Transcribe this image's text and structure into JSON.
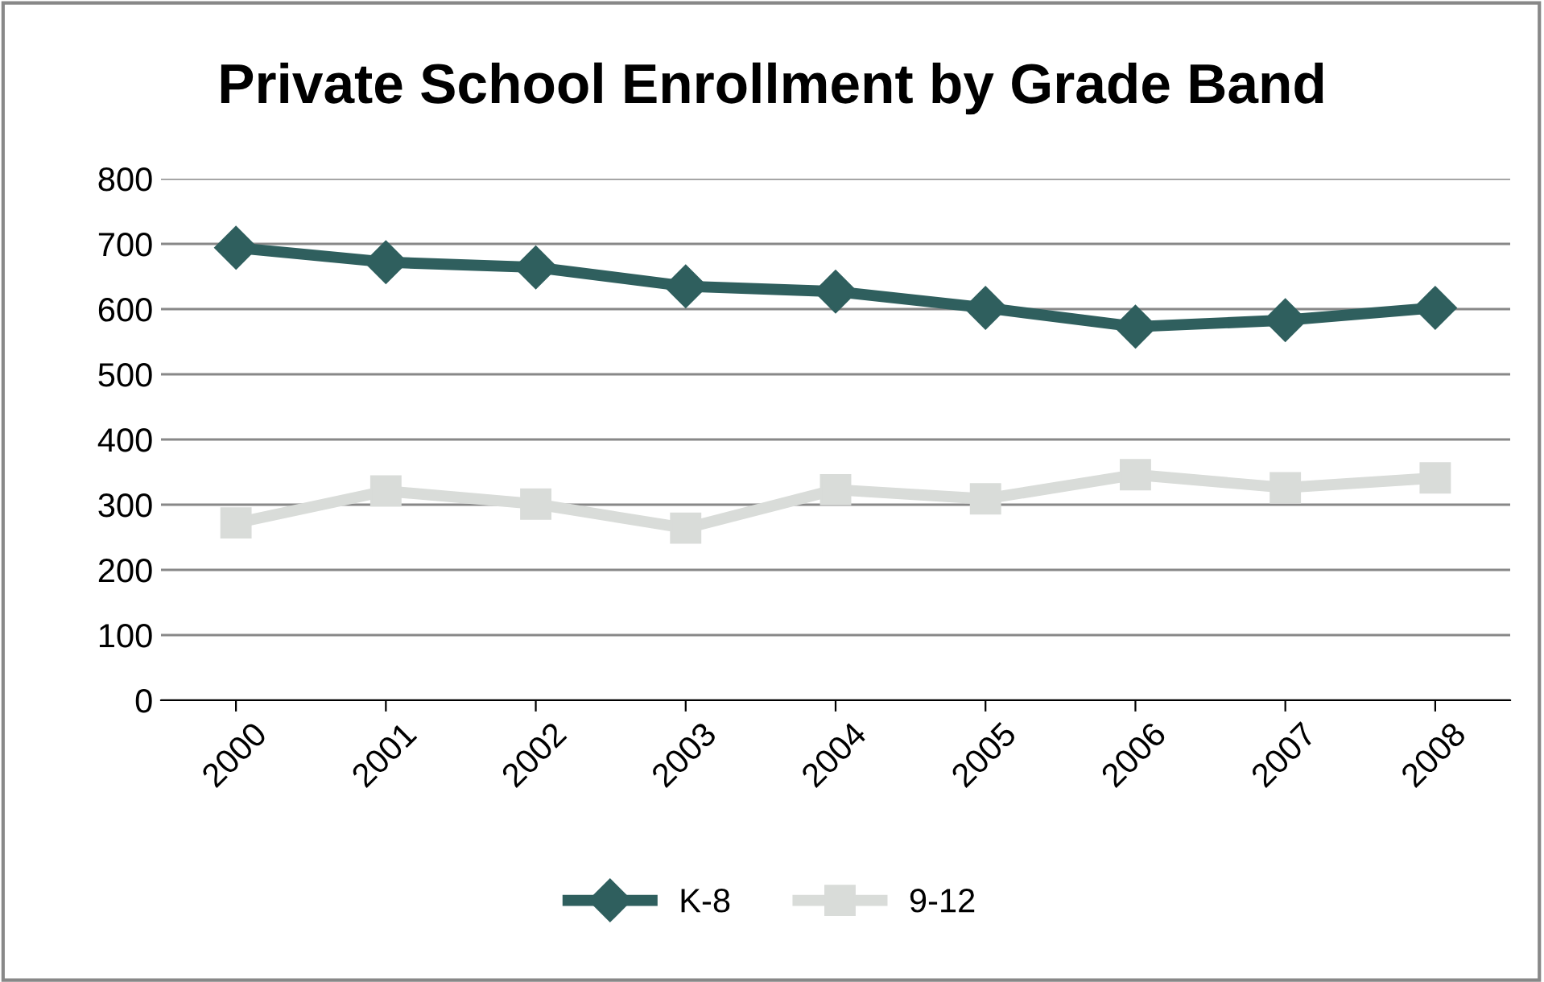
{
  "chart_data": {
    "type": "line",
    "title": "Private School Enrollment by Grade Band",
    "categories": [
      "2000",
      "2001",
      "2002",
      "2003",
      "2004",
      "2005",
      "2006",
      "2007",
      "2008"
    ],
    "series": [
      {
        "name": "K-8",
        "color": "#2f5f5e",
        "marker": "diamond",
        "values": [
          694,
          672,
          664,
          635,
          627,
          602,
          573,
          583,
          602
        ]
      },
      {
        "name": "9-12",
        "color": "#d9dcd9",
        "marker": "square",
        "values": [
          272,
          321,
          301,
          264,
          323,
          309,
          346,
          326,
          341
        ]
      }
    ],
    "ylim": [
      0,
      800
    ],
    "yticks": [
      0,
      100,
      200,
      300,
      400,
      500,
      600,
      700,
      800
    ],
    "grid": "y",
    "legend": "bottom",
    "line_style": "solid"
  }
}
